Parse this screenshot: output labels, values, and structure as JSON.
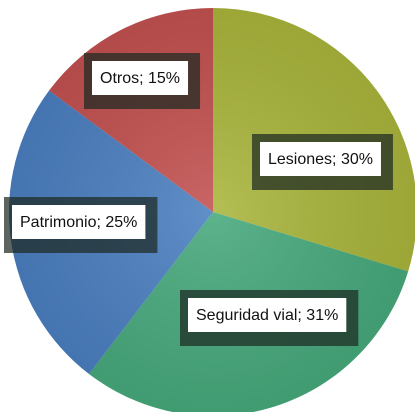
{
  "chart_data": {
    "type": "pie",
    "values": [
      30,
      31,
      25,
      15
    ],
    "value_labels": [
      "Lesiones; 30%",
      "Seguridad vial; 31%",
      "Patrimonio; 25%",
      "Otros; 15%"
    ],
    "colors": [
      "#a9b53c",
      "#47a97c",
      "#4b7fc0",
      "#c25150"
    ]
  }
}
